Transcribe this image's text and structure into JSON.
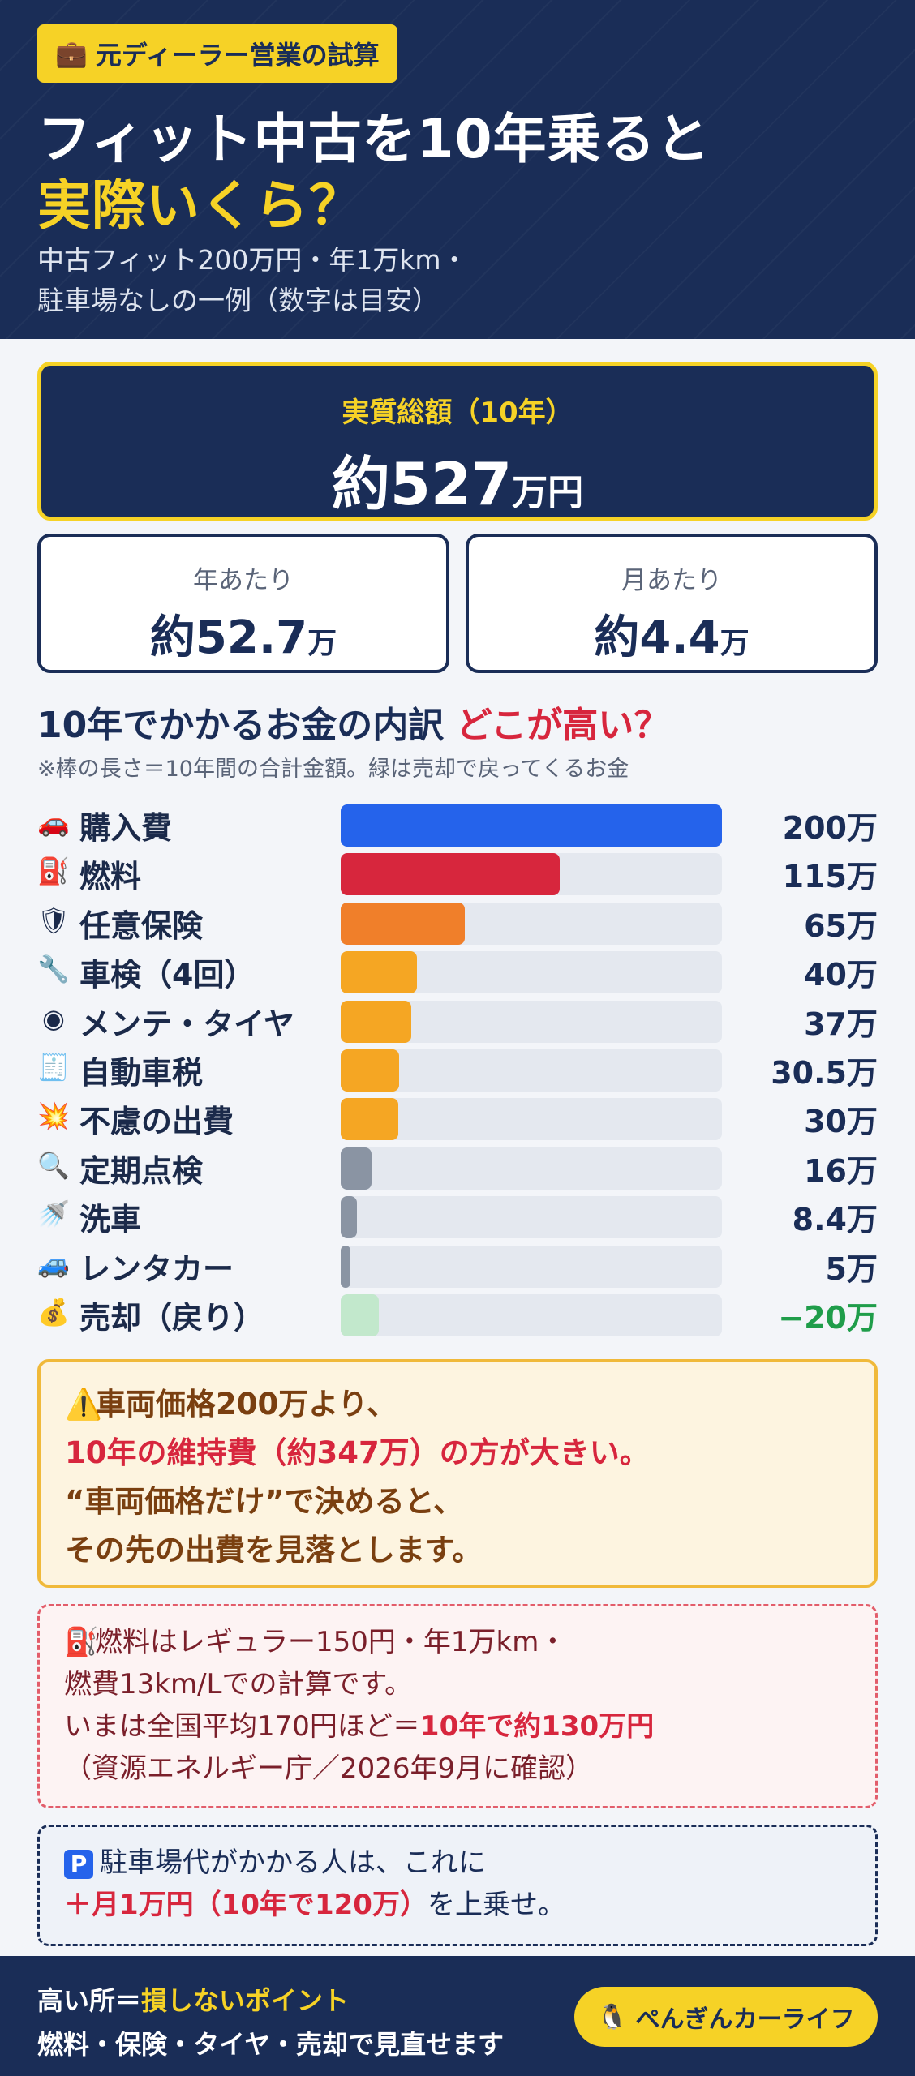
{
  "header": {
    "tag_icon": "briefcase-icon",
    "tag": "元ディーラー営業の試算",
    "title_line1": "フィット中古を10年乗ると",
    "title_line2": "実際いくら？",
    "subtitle_line1": "中古フィット200万円・年1万km・",
    "subtitle_line2": "駐車場なしの一例（数字は目安）"
  },
  "total": {
    "label": "実質総額（10年）",
    "prefix": "約",
    "value": "527",
    "unit": "万円"
  },
  "per_year": {
    "label": "年あたり",
    "prefix": "約",
    "value": "52.7",
    "unit": "万"
  },
  "per_month": {
    "label": "月あたり",
    "prefix": "約",
    "value": "4.4",
    "unit": "万"
  },
  "section": {
    "title": "10年でかかるお金の内訳",
    "title_highlight": "どこが高い？",
    "note": "※棒の長さ＝10年間の合計金額。緑は売却で戻ってくるお金"
  },
  "chart_data": {
    "type": "bar",
    "orientation": "horizontal",
    "max": 200,
    "categories": [
      "購入費",
      "燃料",
      "任意保険",
      "車検（4回）",
      "メンテ・タイヤ",
      "自動車税",
      "不慮の出費",
      "定期点検",
      "洗車",
      "レンタカー",
      "売却（戻り）"
    ],
    "values": [
      200,
      115,
      65,
      40,
      37,
      30.5,
      30,
      16,
      8.4,
      5,
      -20
    ],
    "value_labels": [
      "200万",
      "115万",
      "65万",
      "40万",
      "37万",
      "30.5万",
      "30万",
      "16万",
      "8.4万",
      "5万",
      "−20万"
    ],
    "icons": [
      "car-icon",
      "fuel-pump-icon",
      "shield-icon",
      "wrench-icon",
      "tire-icon",
      "receipt-icon",
      "explosion-icon",
      "magnifier-icon",
      "shower-icon",
      "rental-car-icon",
      "money-bag-icon"
    ],
    "colors": [
      "#2563eb",
      "#d7263d",
      "#f07f2a",
      "#f5a623",
      "#f5a623",
      "#f5a623",
      "#f5a623",
      "#8a94a3",
      "#8a94a3",
      "#8a94a3",
      "#c2e8cc"
    ]
  },
  "warning": {
    "line1": "車両価格200万より、",
    "line2": "10年の維持費（約347万）の方が大きい。",
    "line3": "“車両価格だけ”で決めると、",
    "line4": "その先の出費を見落とします。"
  },
  "fuel_note": {
    "line1": "燃料はレギュラー150円・年1万km・",
    "line2": "燃費13km/Lでの計算です。",
    "line3a": "いまは全国平均170円ほど＝",
    "line3b": "10年で約130万円",
    "line4": "（資源エネルギー庁／2026年9月に確認）"
  },
  "parking_note": {
    "line1": "駐車場代がかかる人は、これに",
    "line2a": "＋月1万円（10年で120万）",
    "line2b": "を上乗せ。"
  },
  "footer": {
    "line1a": "高い所＝",
    "line1b": "損しないポイント",
    "line2": "燃料・保険・タイヤ・売却で見直せます",
    "brand": "ぺんぎんカーライフ"
  }
}
